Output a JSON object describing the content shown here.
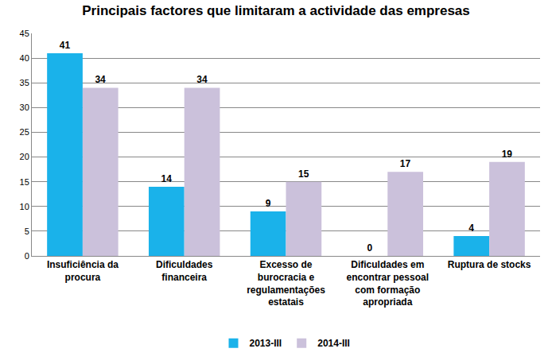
{
  "chart_data": {
    "type": "bar",
    "title": "Principais factores que limitaram a actividade das empresas",
    "categories": [
      "Insuficiência da procura",
      "Dificuldades financeira",
      "Excesso de burocracia e regulamentações estatais",
      "Dificuldades em encontrar pessoal com formação apropriada",
      "Ruptura de stocks"
    ],
    "series": [
      {
        "name": "2013-III",
        "color": "#1ab2ea",
        "values": [
          41,
          14,
          9,
          0,
          4
        ]
      },
      {
        "name": "2014-III",
        "color": "#cbc1db",
        "values": [
          34,
          34,
          15,
          17,
          19
        ]
      }
    ],
    "ylim": [
      0,
      45
    ],
    "yticks": [
      0,
      5,
      10,
      15,
      20,
      25,
      30,
      35,
      40,
      45
    ],
    "grid": true,
    "data_labels": true,
    "legend": "bottom"
  }
}
